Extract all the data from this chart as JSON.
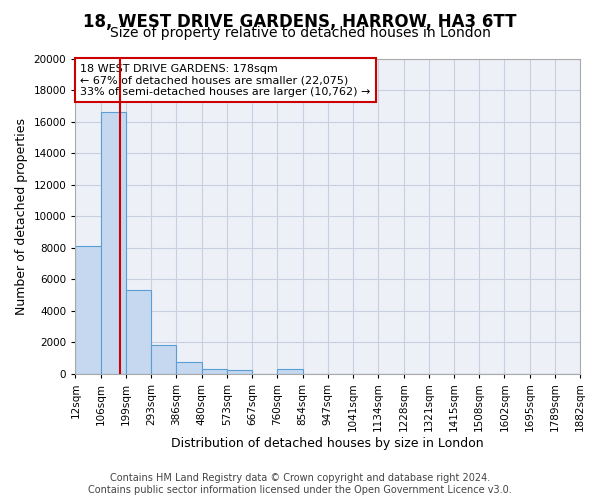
{
  "title": "18, WEST DRIVE GARDENS, HARROW, HA3 6TT",
  "subtitle": "Size of property relative to detached houses in London",
  "xlabel": "Distribution of detached houses by size in London",
  "ylabel": "Number of detached properties",
  "annotation_line1": "18 WEST DRIVE GARDENS: 178sqm",
  "annotation_line2": "← 67% of detached houses are smaller (22,075)",
  "annotation_line3": "33% of semi-detached houses are larger (10,762) →",
  "footer_line1": "Contains HM Land Registry data © Crown copyright and database right 2024.",
  "footer_line2": "Contains public sector information licensed under the Open Government Licence v3.0.",
  "bin_labels": [
    "12sqm",
    "106sqm",
    "199sqm",
    "293sqm",
    "386sqm",
    "480sqm",
    "573sqm",
    "667sqm",
    "760sqm",
    "854sqm",
    "947sqm",
    "1041sqm",
    "1134sqm",
    "1228sqm",
    "1321sqm",
    "1415sqm",
    "1508sqm",
    "1602sqm",
    "1695sqm",
    "1789sqm",
    "1882sqm"
  ],
  "bin_edges": [
    12,
    106,
    199,
    293,
    386,
    480,
    573,
    667,
    760,
    854,
    947,
    1041,
    1134,
    1228,
    1321,
    1415,
    1508,
    1602,
    1695,
    1789,
    1882
  ],
  "bar_heights": [
    8100,
    16600,
    5300,
    1850,
    750,
    320,
    240,
    0,
    270,
    0,
    0,
    0,
    0,
    0,
    0,
    0,
    0,
    0,
    0,
    0
  ],
  "bar_color": "#c5d8f0",
  "bar_edge_color": "#5a9fd4",
  "vline_x": 178,
  "vline_color": "#cc0000",
  "annotation_box_edge_color": "#cc0000",
  "annotation_box_face_color": "#ffffff",
  "ylim": [
    0,
    20000
  ],
  "yticks": [
    0,
    2000,
    4000,
    6000,
    8000,
    10000,
    12000,
    14000,
    16000,
    18000,
    20000
  ],
  "grid_color": "#c8d0e0",
  "background_color": "#eef0f8",
  "title_fontsize": 12,
  "subtitle_fontsize": 10,
  "axis_label_fontsize": 9,
  "tick_fontsize": 7.5,
  "annotation_fontsize": 8,
  "footer_fontsize": 7
}
